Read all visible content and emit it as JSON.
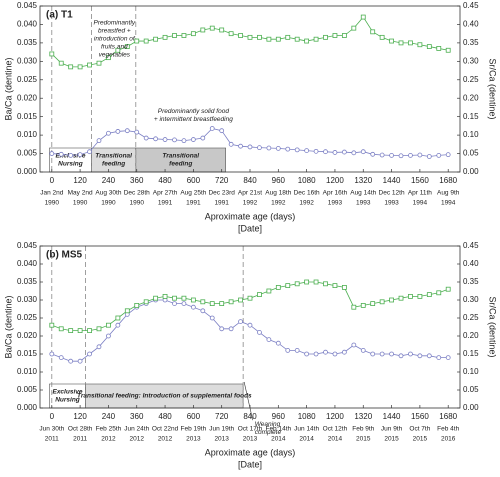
{
  "chart_data": [
    {
      "type": "line",
      "title": "(a) T1",
      "ylabel": "Ba/Ca (dentine)",
      "y2label": "Sr/Ca (dentine)",
      "xlabel": "Aproximate age (days)",
      "xlabel2": "[Date]",
      "xlim": [
        -50,
        1730
      ],
      "xticks": [
        0,
        120,
        240,
        360,
        480,
        600,
        720,
        840,
        960,
        1080,
        1200,
        1320,
        1440,
        1560,
        1680
      ],
      "date_labels": [
        [
          "Jan 2nd",
          "1990"
        ],
        [
          "May 2nd",
          "1990"
        ],
        [
          "Aug 30th",
          "1990"
        ],
        [
          "Dec 28th",
          "1990"
        ],
        [
          "Apr 27th",
          "1991"
        ],
        [
          "Aug 25th",
          "1991"
        ],
        [
          "Dec 23rd",
          "1991"
        ],
        [
          "Apr 21st",
          "1992"
        ],
        [
          "Aug 18th",
          "1992"
        ],
        [
          "Dec 16th",
          "1992"
        ],
        [
          "Apr 16th",
          "1993"
        ],
        [
          "Aug 14th",
          "1993"
        ],
        [
          "Dec 12th",
          "1993"
        ],
        [
          "Apr 11th",
          "1994"
        ],
        [
          "Aug 9th",
          "1994"
        ]
      ],
      "ylim": [
        0,
        0.045
      ],
      "yticks": [
        {
          "value": 0,
          "label": "0.000"
        },
        0.005,
        {
          "value": 0.01,
          "label": "0.010"
        },
        0.015,
        {
          "value": 0.02,
          "label": "0.020"
        },
        0.025,
        {
          "value": 0.03,
          "label": "0.030"
        },
        0.035,
        {
          "value": 0.04,
          "label": "0.040"
        },
        0.045
      ],
      "y2lim": [
        0,
        0.45
      ],
      "y2ticks": [
        {
          "value": 0,
          "label": "0.00"
        },
        0.05,
        {
          "value": 0.1,
          "label": "0.10"
        },
        0.15,
        {
          "value": 0.2,
          "label": "0.20"
        },
        0.25,
        {
          "value": 0.3,
          "label": "0.30"
        },
        0.35,
        {
          "value": 0.4,
          "label": "0.40"
        },
        0.45
      ],
      "x": [
        0,
        40,
        80,
        120,
        160,
        200,
        240,
        280,
        320,
        360,
        400,
        440,
        480,
        520,
        560,
        600,
        640,
        680,
        720,
        760,
        800,
        840,
        880,
        920,
        960,
        1000,
        1040,
        1080,
        1120,
        1160,
        1200,
        1240,
        1280,
        1320,
        1360,
        1400,
        1440,
        1480,
        1520,
        1560,
        1600,
        1640,
        1680
      ],
      "series": [
        {
          "name": "Ba/Ca",
          "color": "#7b7fc4",
          "axis": "y",
          "marker": "circle",
          "values": [
            0.005,
            0.0048,
            0.0045,
            0.0047,
            0.0055,
            0.0085,
            0.0105,
            0.011,
            0.0112,
            0.0108,
            0.0092,
            0.009,
            0.0088,
            0.0087,
            0.0085,
            0.0088,
            0.0092,
            0.0118,
            0.0112,
            0.0075,
            0.007,
            0.0068,
            0.0066,
            0.0065,
            0.0064,
            0.0062,
            0.006,
            0.0058,
            0.0056,
            0.0055,
            0.0053,
            0.0054,
            0.0052,
            0.0055,
            0.0048,
            0.0046,
            0.0045,
            0.0044,
            0.0045,
            0.0046,
            0.0042,
            0.0045,
            0.0047
          ]
        },
        {
          "name": "Sr/Ca",
          "color": "#4caf50",
          "axis": "y2",
          "marker": "square",
          "values": [
            0.32,
            0.295,
            0.285,
            0.285,
            0.29,
            0.295,
            0.31,
            0.33,
            0.34,
            0.355,
            0.355,
            0.36,
            0.365,
            0.37,
            0.37,
            0.375,
            0.385,
            0.39,
            0.385,
            0.375,
            0.37,
            0.365,
            0.365,
            0.36,
            0.36,
            0.365,
            0.36,
            0.355,
            0.36,
            0.365,
            0.37,
            0.37,
            0.39,
            0.42,
            0.38,
            0.365,
            0.355,
            0.35,
            0.35,
            0.345,
            0.34,
            0.335,
            0.33
          ]
        }
      ],
      "vlines": [
        0,
        168,
        356
      ],
      "regions": [
        {
          "label": [
            "Exclusive",
            "Nursing"
          ],
          "start": -10,
          "end": 168,
          "shade": "#ffffff"
        },
        {
          "label": [
            "Transitional",
            "feeding"
          ],
          "start": 168,
          "end": 356,
          "shade": "#dcdcdc"
        },
        {
          "label": [
            "Transitional",
            "feeding"
          ],
          "start": 356,
          "end": 737,
          "shade": "#c8c8c8"
        }
      ],
      "annotations": [
        [
          "Predominantly",
          "breastfed +",
          "introduction of",
          "fruits and",
          "vegetables"
        ],
        [
          "Predominantly solid food",
          "+ intermittent breastfeeding"
        ]
      ]
    },
    {
      "type": "line",
      "title": "(b) MS5",
      "ylabel": "Ba/Ca (dentine)",
      "y2label": "Sr/Ca (dentine)",
      "xlabel": "Aproximate age (days)",
      "xlabel2": "[Date]",
      "xlim": [
        -50,
        1730
      ],
      "xticks": [
        0,
        120,
        240,
        360,
        480,
        600,
        720,
        840,
        960,
        1080,
        1200,
        1320,
        1440,
        1560,
        1680
      ],
      "date_labels": [
        [
          "Jun 30th",
          "2011"
        ],
        [
          "Oct 28th",
          "2011"
        ],
        [
          "Feb 25th",
          "2012"
        ],
        [
          "Jun 24th",
          "2012"
        ],
        [
          "Oct 22nd",
          "2012"
        ],
        [
          "Feb 19th",
          "2013"
        ],
        [
          "Jun 19th",
          "2013"
        ],
        [
          "Oct 17th",
          "2013"
        ],
        [
          "Feb 14th",
          "2014"
        ],
        [
          "Jun 14th",
          "2014"
        ],
        [
          "Oct 12th",
          "2014"
        ],
        [
          "Feb 9th",
          "2015"
        ],
        [
          "Jun 9th",
          "2015"
        ],
        [
          "Oct 7th",
          "2015"
        ],
        [
          "Feb 4th",
          "2016"
        ]
      ],
      "ylim": [
        0,
        0.045
      ],
      "yticks": [
        {
          "value": 0,
          "label": "0.000"
        },
        0.005,
        {
          "value": 0.01,
          "label": "0.010"
        },
        0.015,
        {
          "value": 0.02,
          "label": "0.020"
        },
        0.025,
        {
          "value": 0.03,
          "label": "0.030"
        },
        0.035,
        {
          "value": 0.04,
          "label": "0.040"
        },
        0.045
      ],
      "y2lim": [
        0,
        0.45
      ],
      "y2ticks": [
        {
          "value": 0,
          "label": "0.00"
        },
        0.05,
        {
          "value": 0.1,
          "label": "0.10"
        },
        0.15,
        {
          "value": 0.2,
          "label": "0.20"
        },
        0.25,
        {
          "value": 0.3,
          "label": "0.30"
        },
        0.35,
        {
          "value": 0.4,
          "label": "0.40"
        },
        0.45
      ],
      "x": [
        0,
        40,
        80,
        120,
        160,
        200,
        240,
        280,
        320,
        360,
        400,
        440,
        480,
        520,
        560,
        600,
        640,
        680,
        720,
        760,
        800,
        840,
        880,
        920,
        960,
        1000,
        1040,
        1080,
        1120,
        1160,
        1200,
        1240,
        1280,
        1320,
        1360,
        1400,
        1440,
        1480,
        1520,
        1560,
        1600,
        1640,
        1680
      ],
      "series": [
        {
          "name": "Ba/Ca",
          "color": "#7b7fc4",
          "axis": "y",
          "marker": "circle",
          "values": [
            0.015,
            0.014,
            0.013,
            0.013,
            0.015,
            0.017,
            0.02,
            0.023,
            0.026,
            0.028,
            0.029,
            0.03,
            0.03,
            0.029,
            0.029,
            0.028,
            0.027,
            0.025,
            0.022,
            0.022,
            0.024,
            0.023,
            0.021,
            0.019,
            0.018,
            0.016,
            0.016,
            0.015,
            0.015,
            0.0155,
            0.015,
            0.0155,
            0.0175,
            0.016,
            0.015,
            0.015,
            0.015,
            0.0145,
            0.015,
            0.0145,
            0.0145,
            0.014,
            0.014
          ]
        },
        {
          "name": "Sr/Ca",
          "color": "#4caf50",
          "axis": "y2",
          "marker": "square",
          "values": [
            0.23,
            0.22,
            0.215,
            0.215,
            0.215,
            0.22,
            0.23,
            0.25,
            0.27,
            0.285,
            0.295,
            0.305,
            0.31,
            0.305,
            0.305,
            0.3,
            0.295,
            0.29,
            0.29,
            0.295,
            0.3,
            0.305,
            0.315,
            0.325,
            0.335,
            0.34,
            0.345,
            0.35,
            0.35,
            0.345,
            0.34,
            0.335,
            0.28,
            0.285,
            0.29,
            0.295,
            0.3,
            0.305,
            0.31,
            0.31,
            0.315,
            0.32,
            0.33
          ]
        }
      ],
      "vlines": [
        0,
        143,
        811
      ],
      "regions": [
        {
          "label": [
            "Exclusive",
            "Nursing"
          ],
          "start": -10,
          "end": 143,
          "shade": "#ffffff"
        },
        {
          "label": [
            "Transitional feeding: Introduction of supplemental foods"
          ],
          "start": 143,
          "end": 811,
          "shade": "#dcdcdc"
        }
      ],
      "annotations": [
        [
          "Weaning",
          "complete"
        ]
      ]
    }
  ]
}
